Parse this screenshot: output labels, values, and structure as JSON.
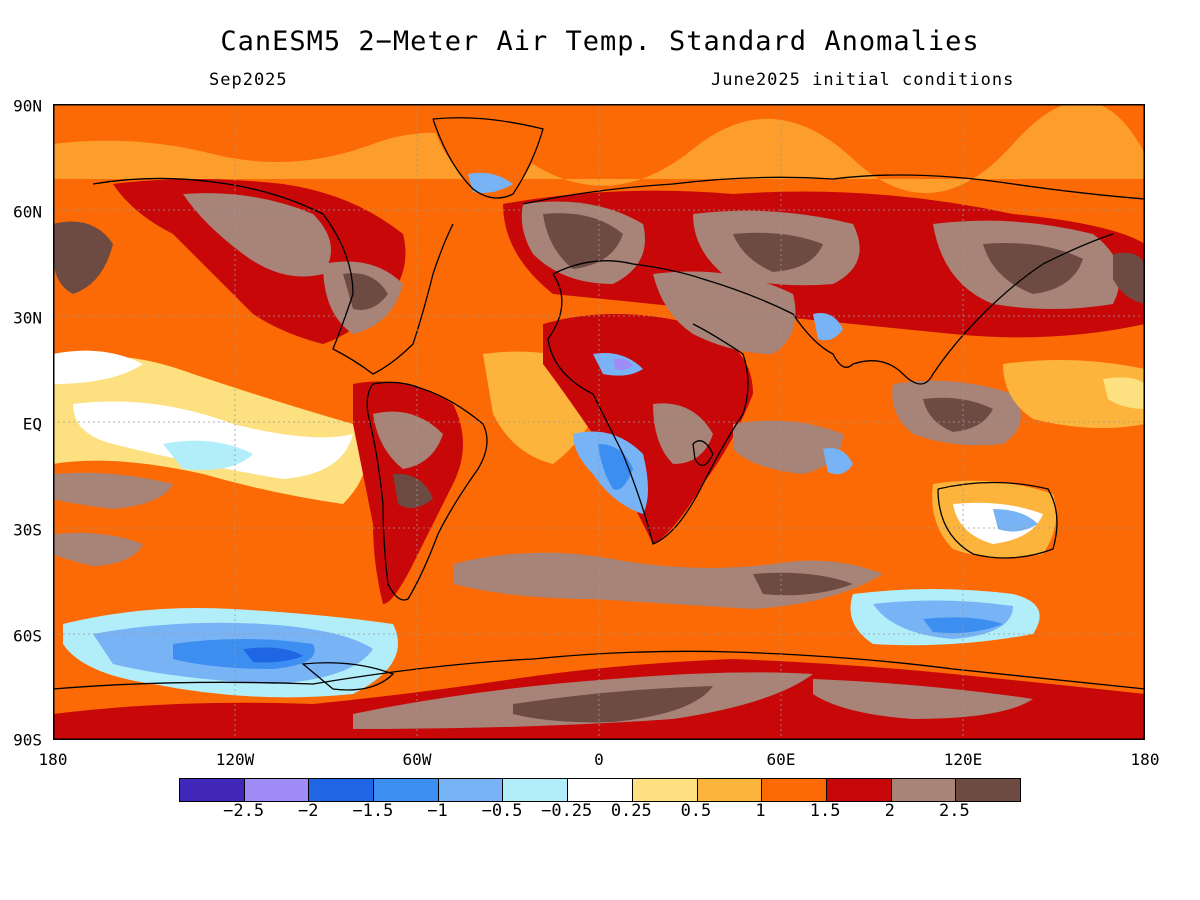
{
  "title": "CanESM5 2−Meter Air Temp. Standard Anomalies",
  "subtitle_left": "Sep2025",
  "subtitle_right": "June2025 initial conditions",
  "lat_labels": [
    "90N",
    "60N",
    "30N",
    "EQ",
    "30S",
    "60S",
    "90S"
  ],
  "lon_labels": [
    "180",
    "120W",
    "60W",
    "0",
    "60E",
    "120E",
    "180"
  ],
  "colorbar": {
    "colors": [
      "#4127b9",
      "#9f8cf6",
      "#1f66e4",
      "#3c8ef0",
      "#78b3f5",
      "#b2eefa",
      "#ffffff",
      "#fde07f",
      "#fcb43d",
      "#fb6a05",
      "#c80808",
      "#a78378",
      "#6e4b42"
    ],
    "labels": [
      "−2.5",
      "−2",
      "−1.5",
      "−1",
      "−0.5",
      "−0.25",
      "0.25",
      "0.5",
      "1",
      "1.5",
      "2",
      "2.5"
    ]
  }
}
